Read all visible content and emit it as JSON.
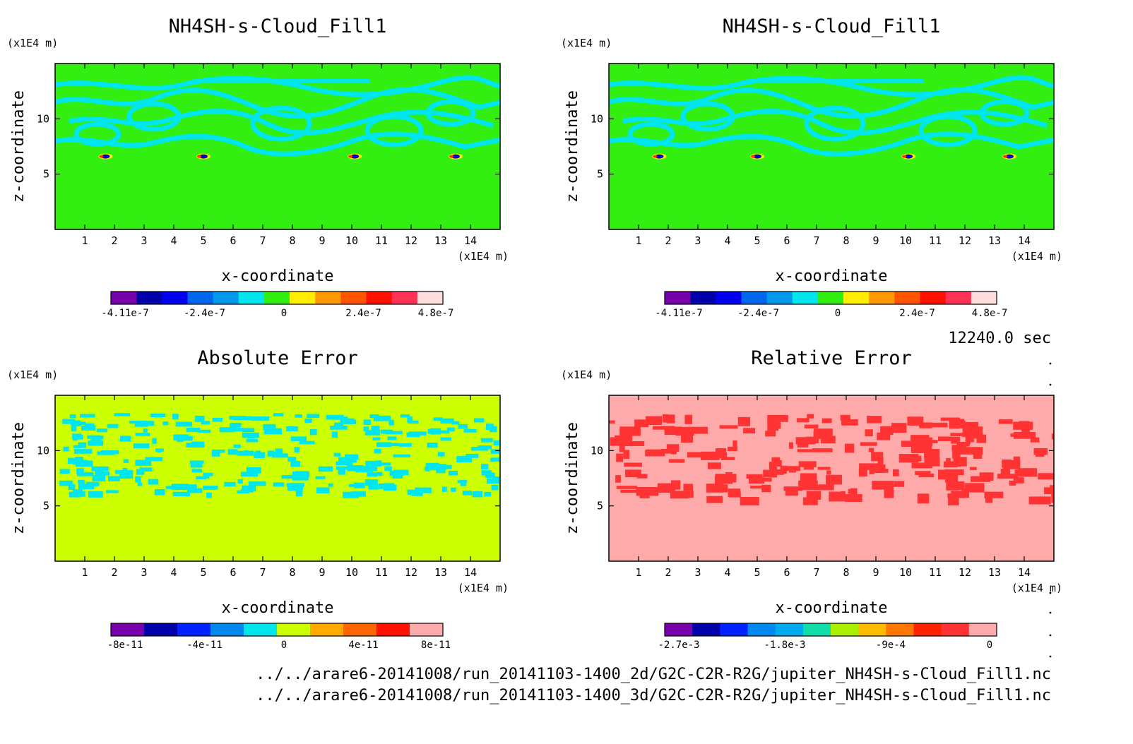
{
  "time_label": "12240.0 sec",
  "file_paths": [
    "../../arare6-20141008/run_20141103-1400_2d/G2C-C2R-R2G/jupiter_NH4SH-s-Cloud_Fill1.nc",
    "../../arare6-20141008/run_20141103-1400_3d/G2C-C2R-R2G/jupiter_NH4SH-s-Cloud_Fill1.nc"
  ],
  "colors": {
    "cloud_background": "#33ee11",
    "cloud_contour": "#00e5ee",
    "abs_background": "#ccff00",
    "abs_contour": "#00e5ee",
    "rel_background": "#ffaaaa",
    "rel_contour": "#ff3333"
  },
  "chart_data": [
    {
      "type": "heatmap",
      "title": "NH4SH-s-Cloud_Fill1",
      "xlabel": "x-coordinate",
      "ylabel": "z-coordinate",
      "x_unit": "(x1E4 m)",
      "y_unit": "(x1E4 m)",
      "xlim": [
        0,
        15
      ],
      "ylim": [
        0,
        15
      ],
      "x_ticks": [
        "1",
        "2",
        "3",
        "4",
        "5",
        "6",
        "7",
        "8",
        "9",
        "10",
        "11",
        "12",
        "13",
        "14"
      ],
      "y_ticks": [
        "5",
        "10"
      ],
      "colorbar": {
        "colors": [
          "#7700aa",
          "#0000aa",
          "#0000ee",
          "#0066ee",
          "#0099ee",
          "#00e5ee",
          "#33ee11",
          "#ffee00",
          "#ff9900",
          "#ff5500",
          "#ff1100",
          "#ff3355",
          "#ffdddd"
        ],
        "labels": [
          "-4.11e-7",
          "-2.4e-7",
          "0",
          "2.4e-7",
          "4.8e-7"
        ]
      }
    },
    {
      "type": "heatmap",
      "title": "NH4SH-s-Cloud_Fill1",
      "xlabel": "x-coordinate",
      "ylabel": "z-coordinate",
      "x_unit": "(x1E4 m)",
      "y_unit": "(x1E4 m)",
      "xlim": [
        0,
        15
      ],
      "ylim": [
        0,
        15
      ],
      "x_ticks": [
        "1",
        "2",
        "3",
        "4",
        "5",
        "6",
        "7",
        "8",
        "9",
        "10",
        "11",
        "12",
        "13",
        "14"
      ],
      "y_ticks": [
        "5",
        "10"
      ],
      "colorbar": {
        "colors": [
          "#7700aa",
          "#0000aa",
          "#0000ee",
          "#0066ee",
          "#0099ee",
          "#00e5ee",
          "#33ee11",
          "#ffee00",
          "#ff9900",
          "#ff5500",
          "#ff1100",
          "#ff3355",
          "#ffdddd"
        ],
        "labels": [
          "-4.11e-7",
          "-2.4e-7",
          "0",
          "2.4e-7",
          "4.8e-7"
        ]
      }
    },
    {
      "type": "heatmap",
      "title": "Absolute Error",
      "xlabel": "x-coordinate",
      "ylabel": "z-coordinate",
      "x_unit": "(x1E4 m)",
      "y_unit": "(x1E4 m)",
      "xlim": [
        0,
        15
      ],
      "ylim": [
        0,
        15
      ],
      "x_ticks": [
        "1",
        "2",
        "3",
        "4",
        "5",
        "6",
        "7",
        "8",
        "9",
        "10",
        "11",
        "12",
        "13",
        "14"
      ],
      "y_ticks": [
        "5",
        "10"
      ],
      "colorbar": {
        "colors": [
          "#7700aa",
          "#0000aa",
          "#0022ff",
          "#0088ee",
          "#00e5ee",
          "#ccff00",
          "#ffaa00",
          "#ff6600",
          "#ff1100",
          "#ffaaaa"
        ],
        "labels": [
          "-8e-11",
          "-4e-11",
          "0",
          "4e-11",
          "8e-11"
        ]
      }
    },
    {
      "type": "heatmap",
      "title": "Relative Error",
      "xlabel": "x-coordinate",
      "ylabel": "z-coordinate",
      "x_unit": "(x1E4 m)",
      "y_unit": "(x1E4 m)",
      "xlim": [
        0,
        15
      ],
      "ylim": [
        0,
        15
      ],
      "x_ticks": [
        "1",
        "2",
        "3",
        "4",
        "5",
        "6",
        "7",
        "8",
        "9",
        "10",
        "11",
        "12",
        "13",
        "14"
      ],
      "y_ticks": [
        "5",
        "10"
      ],
      "colorbar": {
        "colors": [
          "#7700aa",
          "#0000aa",
          "#0022ff",
          "#0088ee",
          "#00aaee",
          "#11ddaa",
          "#aaee00",
          "#ffbb00",
          "#ff7700",
          "#ff2200",
          "#ff3333",
          "#ffaaaa"
        ],
        "labels": [
          "-2.7e-3",
          "-1.8e-3",
          "-9e-4",
          "0"
        ]
      }
    }
  ]
}
